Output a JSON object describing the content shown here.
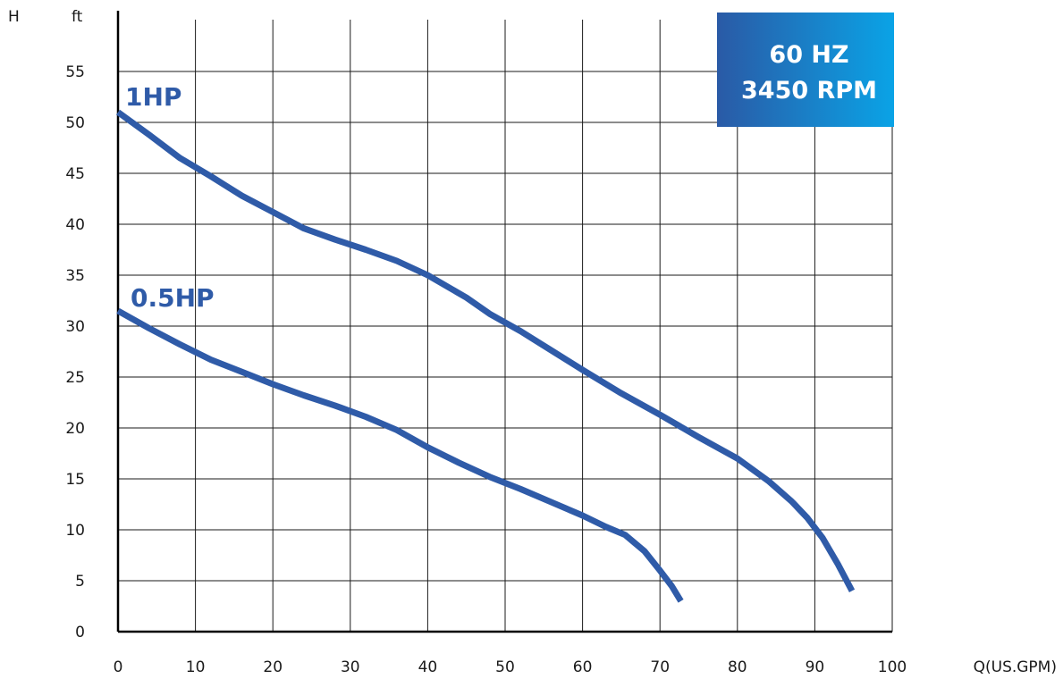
{
  "chart_data": {
    "type": "line",
    "ylabel_symbol": "H",
    "yunit": "ft",
    "xlabel": "Q(US.GPM)",
    "xlim": [
      0,
      100
    ],
    "ylim": [
      0,
      55
    ],
    "xticks": [
      0,
      10,
      20,
      30,
      40,
      50,
      60,
      70,
      80,
      90,
      100
    ],
    "yticks": [
      0,
      5,
      10,
      15,
      20,
      25,
      30,
      35,
      40,
      45,
      50,
      55
    ],
    "grid": true,
    "badge": {
      "line1": "60 HZ",
      "line2": "3450 RPM",
      "color_start": "#2a5aa6",
      "color_end": "#0aa3e6"
    },
    "series": [
      {
        "name": "1HP",
        "color": "#2f5ba8",
        "x": [
          0,
          4,
          8,
          12,
          16,
          20,
          24,
          28,
          32,
          36,
          40,
          45,
          48,
          52,
          56,
          60,
          65,
          70,
          75,
          80,
          84,
          87,
          89,
          91,
          93,
          94.8
        ],
        "y": [
          51,
          48.8,
          46.5,
          44.7,
          42.8,
          41.2,
          39.6,
          38.5,
          37.5,
          36.4,
          35,
          32.8,
          31.2,
          29.5,
          27.6,
          25.7,
          23.4,
          21.3,
          19.1,
          17,
          14.8,
          12.8,
          11.2,
          9.2,
          6.6,
          4
        ]
      },
      {
        "name": "0.5HP",
        "color": "#2f5ba8",
        "x": [
          0,
          4,
          8,
          12,
          16,
          20,
          24,
          28,
          32,
          36,
          40,
          44,
          48,
          52,
          56,
          60,
          63,
          65.5,
          68,
          70,
          71.5,
          72.7
        ],
        "y": [
          31.5,
          29.8,
          28.2,
          26.7,
          25.5,
          24.3,
          23.2,
          22.2,
          21.1,
          19.8,
          18.1,
          16.6,
          15.2,
          14,
          12.7,
          11.4,
          10.3,
          9.5,
          7.9,
          6,
          4.5,
          3
        ]
      }
    ]
  }
}
